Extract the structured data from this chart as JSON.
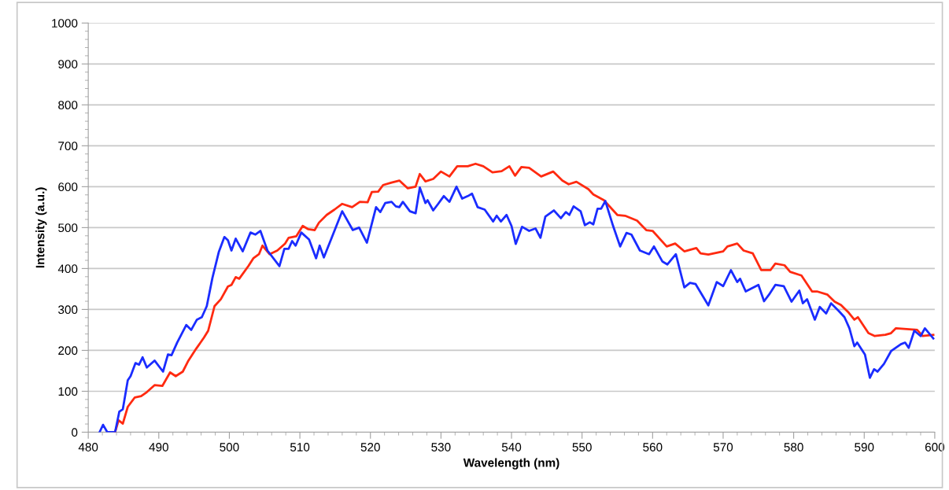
{
  "chart_data": {
    "type": "line",
    "xlabel": "Wavelength (nm)",
    "ylabel": "Intensity (a.u.)",
    "xlim": [
      480,
      600
    ],
    "xticks": [
      480,
      490,
      500,
      510,
      520,
      530,
      540,
      550,
      560,
      570,
      580,
      590,
      600
    ],
    "ylim": [
      0,
      1000
    ],
    "yticks": [
      0,
      100,
      200,
      300,
      400,
      500,
      600,
      700,
      800,
      900,
      1000
    ],
    "grid": "y",
    "marker": "none",
    "line_style": "solid",
    "series": [
      {
        "color": "#ff2a10",
        "x": [
          483.8,
          484.3,
          484.9,
          485.6,
          486.6,
          487.5,
          488.3,
          489.4,
          490.5,
          491.6,
          492.4,
          493.4,
          494.2,
          495.3,
          496.4,
          497,
          497.9,
          498.8,
          499.8,
          500.3,
          500.9,
          501.4,
          502.7,
          503.4,
          504.2,
          504.7,
          505.7,
          506.8,
          507.9,
          508.4,
          509.5,
          510.4,
          511.2,
          512.1,
          512.7,
          513.8,
          514.9,
          516,
          517.4,
          518.5,
          519.6,
          520.2,
          521.1,
          521.8,
          523,
          524.1,
          525.3,
          526.4,
          527,
          527.8,
          528.9,
          530,
          531.2,
          532.3,
          533.8,
          534.9,
          536,
          537.3,
          538.6,
          539.7,
          540.5,
          541.4,
          542.5,
          544.2,
          545.9,
          547.2,
          548.1,
          549.2,
          550.9,
          551.6,
          553.1,
          555,
          556.1,
          557.8,
          559.1,
          560,
          562,
          563.2,
          564.5,
          566.2,
          566.8,
          567.9,
          570,
          570.6,
          572,
          572.9,
          574.2,
          575.4,
          576.7,
          577.4,
          578.7,
          579.5,
          581.1,
          582.6,
          583.3,
          584.8,
          585.8,
          586.7,
          587.8,
          588.6,
          589.1,
          590.6,
          591.5,
          593,
          593.8,
          594.5,
          596,
          597.5,
          598.3,
          599.8
        ],
        "values": [
          0,
          29,
          21,
          62,
          85,
          88,
          98,
          115,
          113,
          146,
          137,
          148,
          175,
          204,
          231,
          248,
          308,
          325,
          356,
          360,
          379,
          375,
          406,
          425,
          435,
          456,
          435,
          444,
          461,
          475,
          479,
          504,
          496,
          494,
          512,
          531,
          544,
          558,
          550,
          563,
          562,
          587,
          588,
          604,
          610,
          615,
          596,
          600,
          631,
          613,
          619,
          637,
          625,
          650,
          650,
          656,
          650,
          635,
          638,
          650,
          627,
          648,
          646,
          625,
          637,
          615,
          606,
          612,
          594,
          581,
          567,
          531,
          529,
          517,
          494,
          492,
          454,
          461,
          442,
          450,
          437,
          434,
          442,
          454,
          461,
          444,
          437,
          396,
          396,
          412,
          408,
          392,
          383,
          344,
          344,
          336,
          319,
          311,
          292,
          275,
          281,
          242,
          235,
          238,
          242,
          254,
          252,
          250,
          235,
          238
        ]
      },
      {
        "color": "#1a2cff",
        "x": [
          481.6,
          482.1,
          482.7,
          483.8,
          484.4,
          484.9,
          485.6,
          486,
          486.7,
          487.2,
          487.7,
          488.3,
          489.4,
          490.6,
          491.3,
          491.8,
          492.6,
          493.9,
          494.6,
          495.4,
          496.1,
          496.8,
          497.6,
          498.5,
          499.3,
          499.8,
          500.3,
          500.9,
          501.9,
          503,
          503.7,
          504.4,
          505.4,
          507.1,
          507.8,
          508.4,
          508.9,
          509.4,
          510.2,
          511.3,
          512.3,
          512.8,
          513.4,
          514.5,
          516,
          517.5,
          518.4,
          519.5,
          520.8,
          521.4,
          522.1,
          523,
          523.6,
          524.1,
          524.6,
          525.6,
          526.4,
          527,
          527.8,
          528.1,
          528.9,
          529.6,
          530.4,
          531.2,
          532.2,
          533,
          533.8,
          534.4,
          535.2,
          536.2,
          537.4,
          537.9,
          538.5,
          539.3,
          540,
          540.6,
          541.5,
          542.5,
          543.4,
          544.1,
          544.8,
          546,
          547,
          547.7,
          548.2,
          548.8,
          549.8,
          550.4,
          551.1,
          551.6,
          552.2,
          552.7,
          553.3,
          554.4,
          555.4,
          556.3,
          557,
          558.2,
          559.5,
          560.2,
          561.4,
          562.1,
          563.3,
          564.5,
          565.3,
          566.1,
          567.9,
          569.1,
          570,
          571.1,
          572,
          572.4,
          573.2,
          575,
          575.8,
          576.5,
          577.4,
          578.6,
          579.7,
          580.8,
          581.3,
          581.9,
          583,
          583.7,
          584.6,
          585.3,
          586.4,
          587.2,
          587.9,
          588.6,
          589,
          590.1,
          590.8,
          591.4,
          591.9,
          592.8,
          593.8,
          595.2,
          595.8,
          596.3,
          597.1,
          598,
          598.6,
          599.8
        ],
        "values": [
          0,
          18,
          0,
          0,
          50,
          56,
          127,
          137,
          169,
          165,
          183,
          158,
          175,
          148,
          190,
          188,
          219,
          262,
          250,
          275,
          281,
          308,
          377,
          440,
          477,
          469,
          444,
          473,
          442,
          488,
          483,
          492,
          444,
          406,
          448,
          448,
          467,
          456,
          488,
          471,
          425,
          456,
          427,
          475,
          540,
          494,
          500,
          463,
          550,
          538,
          560,
          563,
          552,
          550,
          563,
          540,
          535,
          598,
          560,
          567,
          542,
          558,
          577,
          563,
          600,
          571,
          577,
          583,
          550,
          544,
          515,
          529,
          515,
          531,
          504,
          460,
          502,
          492,
          498,
          475,
          527,
          542,
          523,
          538,
          531,
          552,
          540,
          506,
          513,
          508,
          546,
          546,
          565,
          504,
          454,
          487,
          483,
          444,
          435,
          454,
          417,
          410,
          435,
          354,
          365,
          362,
          310,
          367,
          357,
          396,
          367,
          375,
          344,
          360,
          320,
          336,
          360,
          357,
          319,
          346,
          315,
          325,
          275,
          306,
          290,
          315,
          296,
          281,
          254,
          210,
          219,
          190,
          133,
          154,
          148,
          167,
          198,
          215,
          219,
          206,
          248,
          235,
          254,
          229
        ]
      }
    ]
  }
}
